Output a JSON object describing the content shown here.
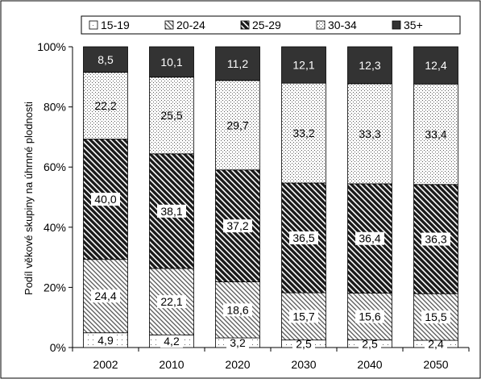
{
  "chart_data": {
    "type": "bar",
    "stacked": true,
    "percent_stacked": true,
    "categories": [
      "2002",
      "2010",
      "2020",
      "2030",
      "2040",
      "2050"
    ],
    "series": [
      {
        "name": "15-19",
        "values": [
          4.9,
          4.2,
          3.2,
          2.5,
          2.5,
          2.4
        ],
        "pattern": "sparse-dots",
        "label_color": "#000000",
        "label_bg": true
      },
      {
        "name": "20-24",
        "values": [
          24.4,
          22.1,
          18.6,
          15.7,
          15.6,
          15.5
        ],
        "pattern": "light-diagonal",
        "label_color": "#000000",
        "label_bg": true
      },
      {
        "name": "25-29",
        "values": [
          40.0,
          38.1,
          37.2,
          36.5,
          36.4,
          36.3
        ],
        "pattern": "dark-diagonal",
        "label_color": "#000000",
        "label_bg": true
      },
      {
        "name": "30-34",
        "values": [
          22.2,
          25.5,
          29.7,
          33.2,
          33.3,
          33.4
        ],
        "pattern": "dots",
        "label_color": "#000000",
        "label_bg": false
      },
      {
        "name": "35+",
        "values": [
          8.5,
          10.1,
          11.2,
          12.1,
          12.3,
          12.4
        ],
        "pattern": "solid-dark",
        "label_color": "#ffffff",
        "label_bg": false
      }
    ],
    "value_labels": {
      "15-19": [
        "4,9",
        "4,2",
        "3,2",
        "2,5",
        "2,5",
        "2,4"
      ],
      "20-24": [
        "24,4",
        "22,1",
        "18,6",
        "15,7",
        "15,6",
        "15,5"
      ],
      "25-29": [
        "40,0",
        "38,1",
        "37,2",
        "36,5",
        "36,4",
        "36,3"
      ],
      "30-34": [
        "22,2",
        "25,5",
        "29,7",
        "33,2",
        "33,3",
        "33,4"
      ],
      "35+": [
        "8,5",
        "10,1",
        "11,2",
        "12,1",
        "12,3",
        "12,4"
      ]
    },
    "ylim": [
      0,
      100
    ],
    "yticks": [
      "0%",
      "20%",
      "40%",
      "60%",
      "80%",
      "100%"
    ],
    "ylabel": "Podíl věkové skupiny na úhrnné plodnosti",
    "xlabel": "",
    "title": "",
    "legend_position": "top",
    "grid": false,
    "colors": {
      "dark": "#333333",
      "border": "#000000",
      "background": "#ffffff"
    }
  }
}
